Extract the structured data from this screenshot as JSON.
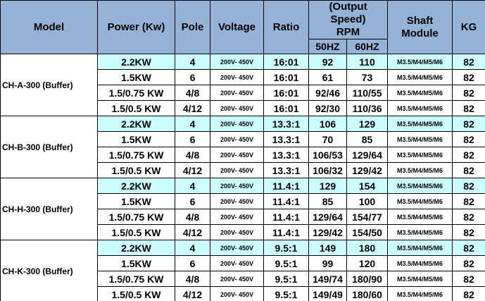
{
  "header": {
    "columns": [
      "Model",
      "Power (Kw)",
      "Pole",
      "Voltage",
      "Ratio",
      "(Output Speed) RPM",
      "Shaft Module",
      "KG"
    ],
    "rpm_sub": [
      "50HZ",
      "60HZ"
    ]
  },
  "groups": [
    {
      "model": "CH-A-300 (Buffer)",
      "rows": [
        [
          "2.2KW",
          "4",
          "200V- 450V",
          "16:01",
          "92",
          "110",
          "M3.5/M4/M5/M6",
          "82"
        ],
        [
          "1.5KW",
          "6",
          "200V- 450V",
          "16:01",
          "61",
          "73",
          "M3.5/M4/M5/M6",
          "82"
        ],
        [
          "1.5/0.75 KW",
          "4/8",
          "200V- 450V",
          "16:01",
          "92/46",
          "110/55",
          "M3.5/M4/M5/M6",
          "82"
        ],
        [
          "1.5/0.5 KW",
          "4/12",
          "200V- 450V",
          "16:01",
          "92/30",
          "110/36",
          "M3.5/M4/M5/M6",
          "82"
        ]
      ]
    },
    {
      "model": "CH-B-300 (Buffer)",
      "rows": [
        [
          "2.2KW",
          "4",
          "200V- 450V",
          "13.3:1",
          "106",
          "129",
          "M3.5/M4/M5/M6",
          "82"
        ],
        [
          "1.5KW",
          "6",
          "200V- 450V",
          "13.3:1",
          "70",
          "85",
          "M3.5/M4/M5/M6",
          "82"
        ],
        [
          "1.5/0.75 KW",
          "4/8",
          "200V- 450V",
          "13.3:1",
          "106/53",
          "129/64",
          "M3.5/M4/M5/M6",
          "82"
        ],
        [
          "1.5/0.5 KW",
          "4/12",
          "200V- 450V",
          "13.3:1",
          "106/32",
          "129/42",
          "M3.5/M4/M5/M6",
          "82"
        ]
      ]
    },
    {
      "model": "CH-H-300 (Buffer)",
      "rows": [
        [
          "2.2KW",
          "4",
          "200V- 450V",
          "11.4:1",
          "129",
          "154",
          "M3.5/M4/M5/M6",
          "82"
        ],
        [
          "1.5KW",
          "6",
          "200V- 450V",
          "11.4:1",
          "85",
          "100",
          "M3.5/M4/M5/M6",
          "82"
        ],
        [
          "1.5/0.75 KW",
          "4/8",
          "200V- 450V",
          "11.4:1",
          "129/64",
          "154/77",
          "M3.5/M4/M5/M6",
          "82"
        ],
        [
          "1.5/0.5 KW",
          "4/12",
          "200V- 450V",
          "11.4:1",
          "129/42",
          "154/50",
          "M3.5/M4/M5/M6",
          "82"
        ]
      ]
    },
    {
      "model": "CH-K-300 (Buffer)",
      "rows": [
        [
          "2.2KW",
          "4",
          "200V- 450V",
          "9.5:1",
          "149",
          "180",
          "M3.5/M4/M5/M6",
          "82"
        ],
        [
          "1.5KW",
          "6",
          "200V- 450V",
          "9.5:1",
          "99",
          "120",
          "M3.5/M4/M5/M6",
          "82"
        ],
        [
          "1.5/0.75 KW",
          "4/8",
          "200V- 450V",
          "9.5:1",
          "149/74",
          "180/90",
          "M3.5/M4/M5/M6",
          "82"
        ],
        [
          "1.5/0.5 KW",
          "4/12",
          "200V- 450V",
          "9.5:1",
          "149/49",
          "180/60",
          "M3.5/M4/M5/M6",
          "82"
        ]
      ]
    }
  ]
}
